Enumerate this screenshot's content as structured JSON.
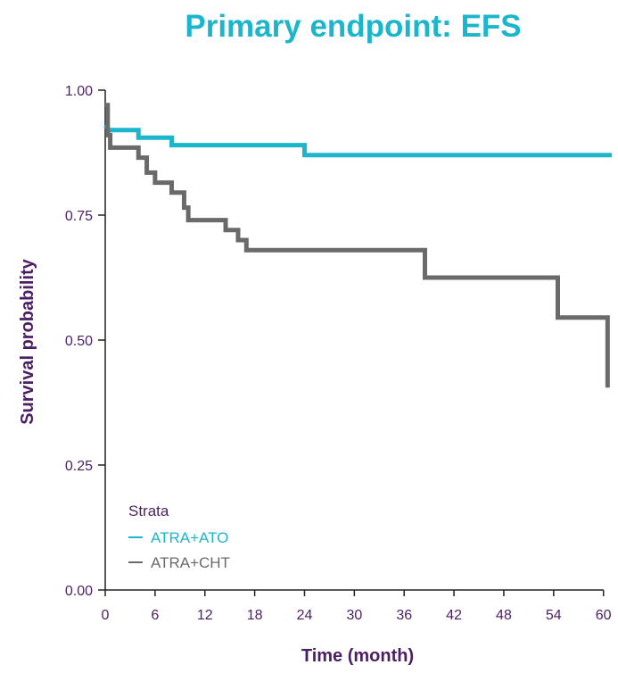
{
  "chart_data": {
    "type": "line",
    "subtype": "kaplan-meier step",
    "title": "Primary endpoint: EFS",
    "xlabel": "Time (month)",
    "ylabel": "Survival probability",
    "xlim": [
      0,
      61
    ],
    "ylim": [
      0,
      1
    ],
    "x_ticks": [
      0,
      6,
      12,
      18,
      24,
      30,
      36,
      42,
      48,
      54,
      60
    ],
    "y_ticks": [
      0,
      0.25,
      0.5,
      0.75,
      1
    ],
    "y_tick_labels": [
      "0.00",
      "0.25",
      "0.50",
      "0.75",
      "1.00"
    ],
    "x_tick_labels": [
      "0",
      "6",
      "12",
      "18",
      "24",
      "30",
      "36",
      "42",
      "48",
      "54",
      "60"
    ],
    "grid": false,
    "legend": {
      "title": "Strata",
      "placement": "bottom-left inside"
    },
    "series": [
      {
        "name": "ATRA+ATO",
        "color": "#1bb6cc",
        "points": [
          [
            0,
            0.93
          ],
          [
            0.5,
            0.92
          ],
          [
            4,
            0.92
          ],
          [
            4,
            0.905
          ],
          [
            8,
            0.905
          ],
          [
            8,
            0.89
          ],
          [
            24,
            0.89
          ],
          [
            24,
            0.87
          ],
          [
            61,
            0.87
          ]
        ]
      },
      {
        "name": "ATRA+CHT",
        "color": "#6a6a6a",
        "points": [
          [
            0,
            0.97
          ],
          [
            0.3,
            0.97
          ],
          [
            0.3,
            0.91
          ],
          [
            0.6,
            0.91
          ],
          [
            0.6,
            0.885
          ],
          [
            4,
            0.885
          ],
          [
            4,
            0.865
          ],
          [
            5,
            0.865
          ],
          [
            5,
            0.835
          ],
          [
            6,
            0.835
          ],
          [
            6,
            0.815
          ],
          [
            8,
            0.815
          ],
          [
            8,
            0.795
          ],
          [
            9.5,
            0.795
          ],
          [
            9.5,
            0.765
          ],
          [
            10,
            0.765
          ],
          [
            10,
            0.74
          ],
          [
            14.5,
            0.74
          ],
          [
            14.5,
            0.72
          ],
          [
            16,
            0.72
          ],
          [
            16,
            0.7
          ],
          [
            17,
            0.7
          ],
          [
            17,
            0.68
          ],
          [
            38.5,
            0.68
          ],
          [
            38.5,
            0.625
          ],
          [
            54.5,
            0.625
          ],
          [
            54.5,
            0.545
          ],
          [
            60.5,
            0.545
          ],
          [
            60.5,
            0.405
          ]
        ]
      }
    ]
  },
  "colors": {
    "title": "#1bb6cc",
    "axis_text": "#4b1f63",
    "axis_line": "#222222",
    "atra_ato": "#1bb6cc",
    "atra_cht": "#6a6a6a"
  }
}
